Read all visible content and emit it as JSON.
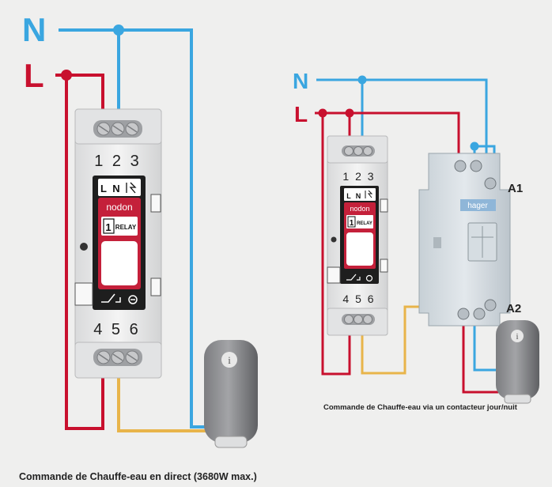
{
  "colors": {
    "background": "#efefee",
    "neutral_wire": "#3aa6e0",
    "live_wire": "#c8102e",
    "control_wire": "#e8b44a",
    "relay_body": "#e8e9ea",
    "relay_face": "#1e1e1e",
    "brand_red": "#c4203a"
  },
  "left": {
    "label_n": "N",
    "label_l": "L",
    "terminals_top": "1 2 3",
    "terminals_bottom": "4 5 6",
    "face_l": "L",
    "face_n": "N",
    "brand": "nodon",
    "channel": "1",
    "relay": "RELAY",
    "heater_symbol": "i",
    "caption": "Commande de Chauffe-eau en direct (3680W max.)"
  },
  "right": {
    "label_n": "N",
    "label_l": "L",
    "terminals_top": "1 2 3",
    "terminals_bottom": "4 5 6",
    "face_l": "L",
    "face_n": "N",
    "brand": "nodon",
    "channel": "1",
    "relay": "RELAY",
    "contactor_brand": "hager",
    "a1": "A1",
    "a2": "A2",
    "heater_symbol": "i",
    "caption": "Commande de Chauffe-eau via un contacteur jour/nuit"
  }
}
